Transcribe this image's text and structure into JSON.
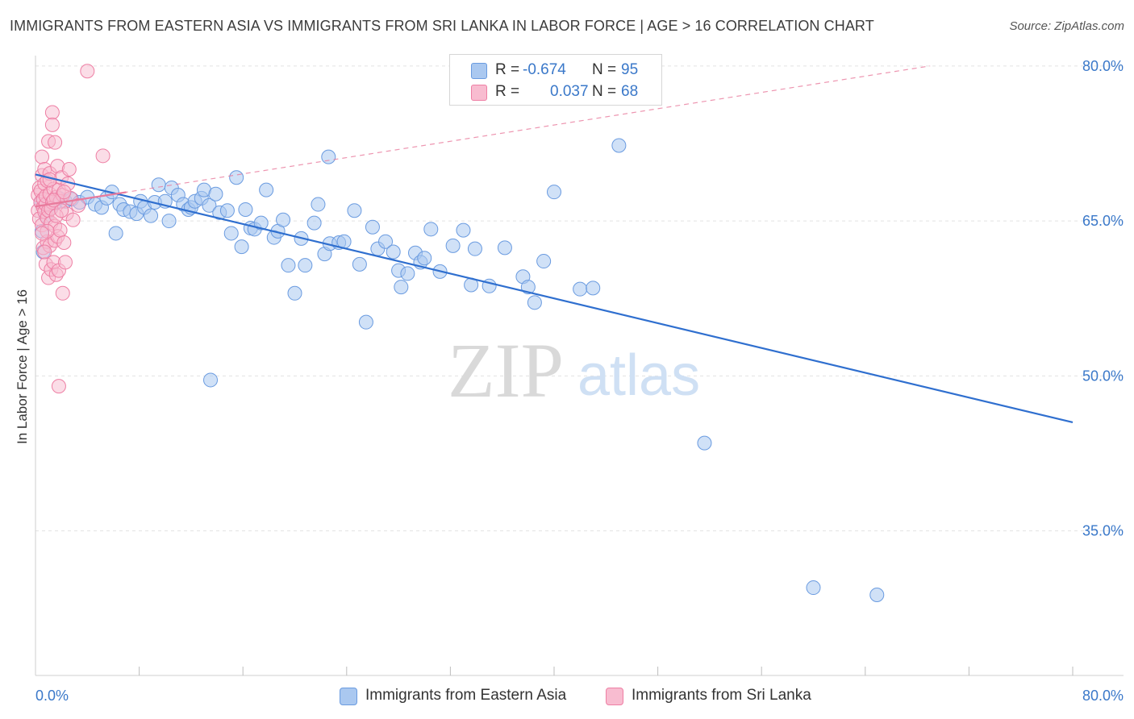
{
  "title": "IMMIGRANTS FROM EASTERN ASIA VS IMMIGRANTS FROM SRI LANKA IN LABOR FORCE | AGE > 16 CORRELATION CHART",
  "source": "Source: ZipAtlas.com",
  "watermark": {
    "zip": "ZIP",
    "atlas": "atlas"
  },
  "legend": {
    "rows": [
      {
        "r_label": "R =",
        "r_value": "-0.674",
        "n_label": "N =",
        "n_value": "95"
      },
      {
        "r_label": "R =",
        "r_value": "0.037",
        "n_label": "N =",
        "n_value": "68"
      }
    ]
  },
  "bottom_legend": [
    "Immigrants from Eastern Asia",
    "Immigrants from Sri Lanka"
  ],
  "colors": {
    "blue_fill": "#aac8f0",
    "blue_stroke": "#6a9be0",
    "blue_line": "#2f6fcf",
    "pink_fill": "#f8bcd0",
    "pink_stroke": "#ee7fa4",
    "pink_line": "#e87a9c",
    "tick_text": "#3a78c9",
    "grid": "#e3e3e3"
  },
  "chart_data": {
    "type": "scatter",
    "title": "IMMIGRANTS FROM EASTERN ASIA VS IMMIGRANTS FROM SRI LANKA IN LABOR FORCE | AGE > 16 CORRELATION CHART",
    "xlabel": "",
    "ylabel": "In Labor Force | Age > 16",
    "xlim": [
      0,
      80
    ],
    "ylim": [
      21,
      81
    ],
    "x_tick_labels": [
      "0.0%",
      "80.0%"
    ],
    "y_ticks": [
      35,
      50,
      65,
      80
    ],
    "y_tick_labels": [
      "35.0%",
      "50.0%",
      "65.0%",
      "80.0%"
    ],
    "grid": true,
    "legend_position": "top-center",
    "series": [
      {
        "name": "Immigrants from Eastern Asia",
        "R": -0.674,
        "N": 95,
        "trend": {
          "x": [
            0,
            80
          ],
          "y": [
            69.5,
            45.5
          ]
        },
        "points": [
          [
            0.4,
            66.8
          ],
          [
            0.5,
            64.0
          ],
          [
            0.6,
            62.0
          ],
          [
            0.8,
            65.5
          ],
          [
            1.0,
            66.5
          ],
          [
            1.2,
            66.2
          ],
          [
            1.5,
            66.7
          ],
          [
            1.8,
            67.2
          ],
          [
            2.3,
            66.9
          ],
          [
            2.8,
            67.1
          ],
          [
            3.4,
            66.8
          ],
          [
            4.0,
            67.3
          ],
          [
            4.6,
            66.6
          ],
          [
            5.1,
            66.3
          ],
          [
            5.5,
            67.2
          ],
          [
            5.9,
            67.8
          ],
          [
            6.2,
            63.8
          ],
          [
            6.5,
            66.6
          ],
          [
            6.8,
            66.1
          ],
          [
            7.3,
            65.9
          ],
          [
            7.8,
            65.7
          ],
          [
            8.1,
            66.9
          ],
          [
            8.4,
            66.3
          ],
          [
            8.9,
            65.5
          ],
          [
            9.2,
            66.8
          ],
          [
            9.5,
            68.5
          ],
          [
            10.0,
            66.9
          ],
          [
            10.3,
            65.0
          ],
          [
            10.5,
            68.2
          ],
          [
            11.0,
            67.5
          ],
          [
            11.4,
            66.6
          ],
          [
            11.8,
            66.1
          ],
          [
            12.0,
            66.3
          ],
          [
            12.3,
            66.9
          ],
          [
            12.8,
            67.2
          ],
          [
            13.0,
            68.0
          ],
          [
            13.4,
            66.5
          ],
          [
            13.9,
            67.6
          ],
          [
            14.2,
            65.8
          ],
          [
            14.8,
            66.0
          ],
          [
            15.1,
            63.8
          ],
          [
            15.5,
            69.2
          ],
          [
            15.9,
            62.5
          ],
          [
            16.2,
            66.1
          ],
          [
            16.6,
            64.3
          ],
          [
            16.9,
            64.2
          ],
          [
            17.4,
            64.8
          ],
          [
            17.8,
            68.0
          ],
          [
            18.4,
            63.4
          ],
          [
            18.7,
            64.0
          ],
          [
            19.1,
            65.1
          ],
          [
            19.5,
            60.7
          ],
          [
            20.0,
            58.0
          ],
          [
            20.5,
            63.3
          ],
          [
            20.8,
            60.7
          ],
          [
            21.5,
            64.8
          ],
          [
            21.8,
            66.6
          ],
          [
            22.3,
            61.8
          ],
          [
            22.7,
            62.8
          ],
          [
            23.4,
            62.9
          ],
          [
            23.8,
            63.0
          ],
          [
            24.6,
            66.0
          ],
          [
            25.0,
            60.8
          ],
          [
            25.5,
            55.2
          ],
          [
            26.0,
            64.4
          ],
          [
            26.4,
            62.3
          ],
          [
            27.0,
            63.0
          ],
          [
            27.6,
            62.0
          ],
          [
            28.0,
            60.2
          ],
          [
            28.2,
            58.6
          ],
          [
            28.7,
            59.9
          ],
          [
            29.3,
            61.9
          ],
          [
            29.7,
            61.0
          ],
          [
            30.0,
            61.4
          ],
          [
            30.5,
            64.2
          ],
          [
            31.2,
            60.1
          ],
          [
            32.2,
            62.6
          ],
          [
            33.0,
            64.1
          ],
          [
            33.6,
            58.8
          ],
          [
            33.9,
            62.3
          ],
          [
            35.0,
            58.7
          ],
          [
            36.2,
            62.4
          ],
          [
            37.6,
            59.6
          ],
          [
            38.0,
            58.6
          ],
          [
            38.5,
            57.1
          ],
          [
            39.2,
            61.1
          ],
          [
            40.0,
            67.8
          ],
          [
            42.0,
            58.4
          ],
          [
            43.0,
            58.5
          ],
          [
            45.0,
            72.3
          ],
          [
            51.6,
            43.5
          ],
          [
            60.0,
            29.5
          ],
          [
            64.9,
            28.8
          ],
          [
            22.6,
            71.2
          ],
          [
            13.5,
            49.6
          ]
        ]
      },
      {
        "name": "Immigrants from Sri Lanka",
        "R": 0.037,
        "N": 68,
        "trend": {
          "x": [
            0,
            69
          ],
          "y": [
            66.4,
            80.0
          ]
        },
        "points": [
          [
            0.2,
            67.5
          ],
          [
            0.2,
            66.0
          ],
          [
            0.3,
            68.2
          ],
          [
            0.3,
            65.2
          ],
          [
            0.4,
            66.8
          ],
          [
            0.4,
            67.9
          ],
          [
            0.5,
            64.6
          ],
          [
            0.5,
            69.4
          ],
          [
            0.5,
            71.2
          ],
          [
            0.6,
            66.3
          ],
          [
            0.6,
            67.1
          ],
          [
            0.6,
            62.4
          ],
          [
            0.7,
            68.6
          ],
          [
            0.7,
            65.9
          ],
          [
            0.7,
            70.0
          ],
          [
            0.8,
            60.8
          ],
          [
            0.8,
            66.6
          ],
          [
            0.8,
            67.4
          ],
          [
            0.9,
            63.0
          ],
          [
            0.9,
            68.9
          ],
          [
            0.9,
            65.3
          ],
          [
            1.0,
            59.5
          ],
          [
            1.0,
            66.0
          ],
          [
            1.0,
            72.7
          ],
          [
            1.1,
            62.6
          ],
          [
            1.1,
            67.6
          ],
          [
            1.1,
            69.6
          ],
          [
            1.2,
            64.8
          ],
          [
            1.2,
            60.3
          ],
          [
            1.3,
            75.5
          ],
          [
            1.3,
            74.3
          ],
          [
            1.3,
            66.8
          ],
          [
            1.4,
            61.0
          ],
          [
            1.4,
            68.1
          ],
          [
            1.5,
            63.1
          ],
          [
            1.5,
            72.6
          ],
          [
            1.5,
            64.5
          ],
          [
            1.6,
            67.3
          ],
          [
            1.6,
            59.8
          ],
          [
            1.7,
            70.3
          ],
          [
            1.7,
            63.5
          ],
          [
            1.8,
            60.2
          ],
          [
            1.8,
            68.0
          ],
          [
            1.8,
            49.0
          ],
          [
            1.9,
            64.1
          ],
          [
            1.9,
            66.9
          ],
          [
            2.0,
            69.2
          ],
          [
            2.1,
            58.0
          ],
          [
            2.1,
            67.5
          ],
          [
            2.2,
            62.9
          ],
          [
            2.3,
            61.0
          ],
          [
            2.4,
            65.7
          ],
          [
            2.5,
            68.6
          ],
          [
            2.6,
            70.0
          ],
          [
            2.7,
            67.2
          ],
          [
            2.9,
            65.1
          ],
          [
            3.3,
            66.5
          ],
          [
            4.0,
            79.5
          ],
          [
            5.2,
            71.3
          ],
          [
            0.9,
            64.0
          ],
          [
            1.2,
            66.2
          ],
          [
            0.5,
            63.8
          ],
          [
            1.6,
            65.5
          ],
          [
            2.0,
            66.0
          ],
          [
            0.7,
            62.0
          ],
          [
            1.1,
            69.0
          ],
          [
            1.4,
            67.0
          ],
          [
            2.2,
            67.8
          ]
        ]
      }
    ]
  }
}
